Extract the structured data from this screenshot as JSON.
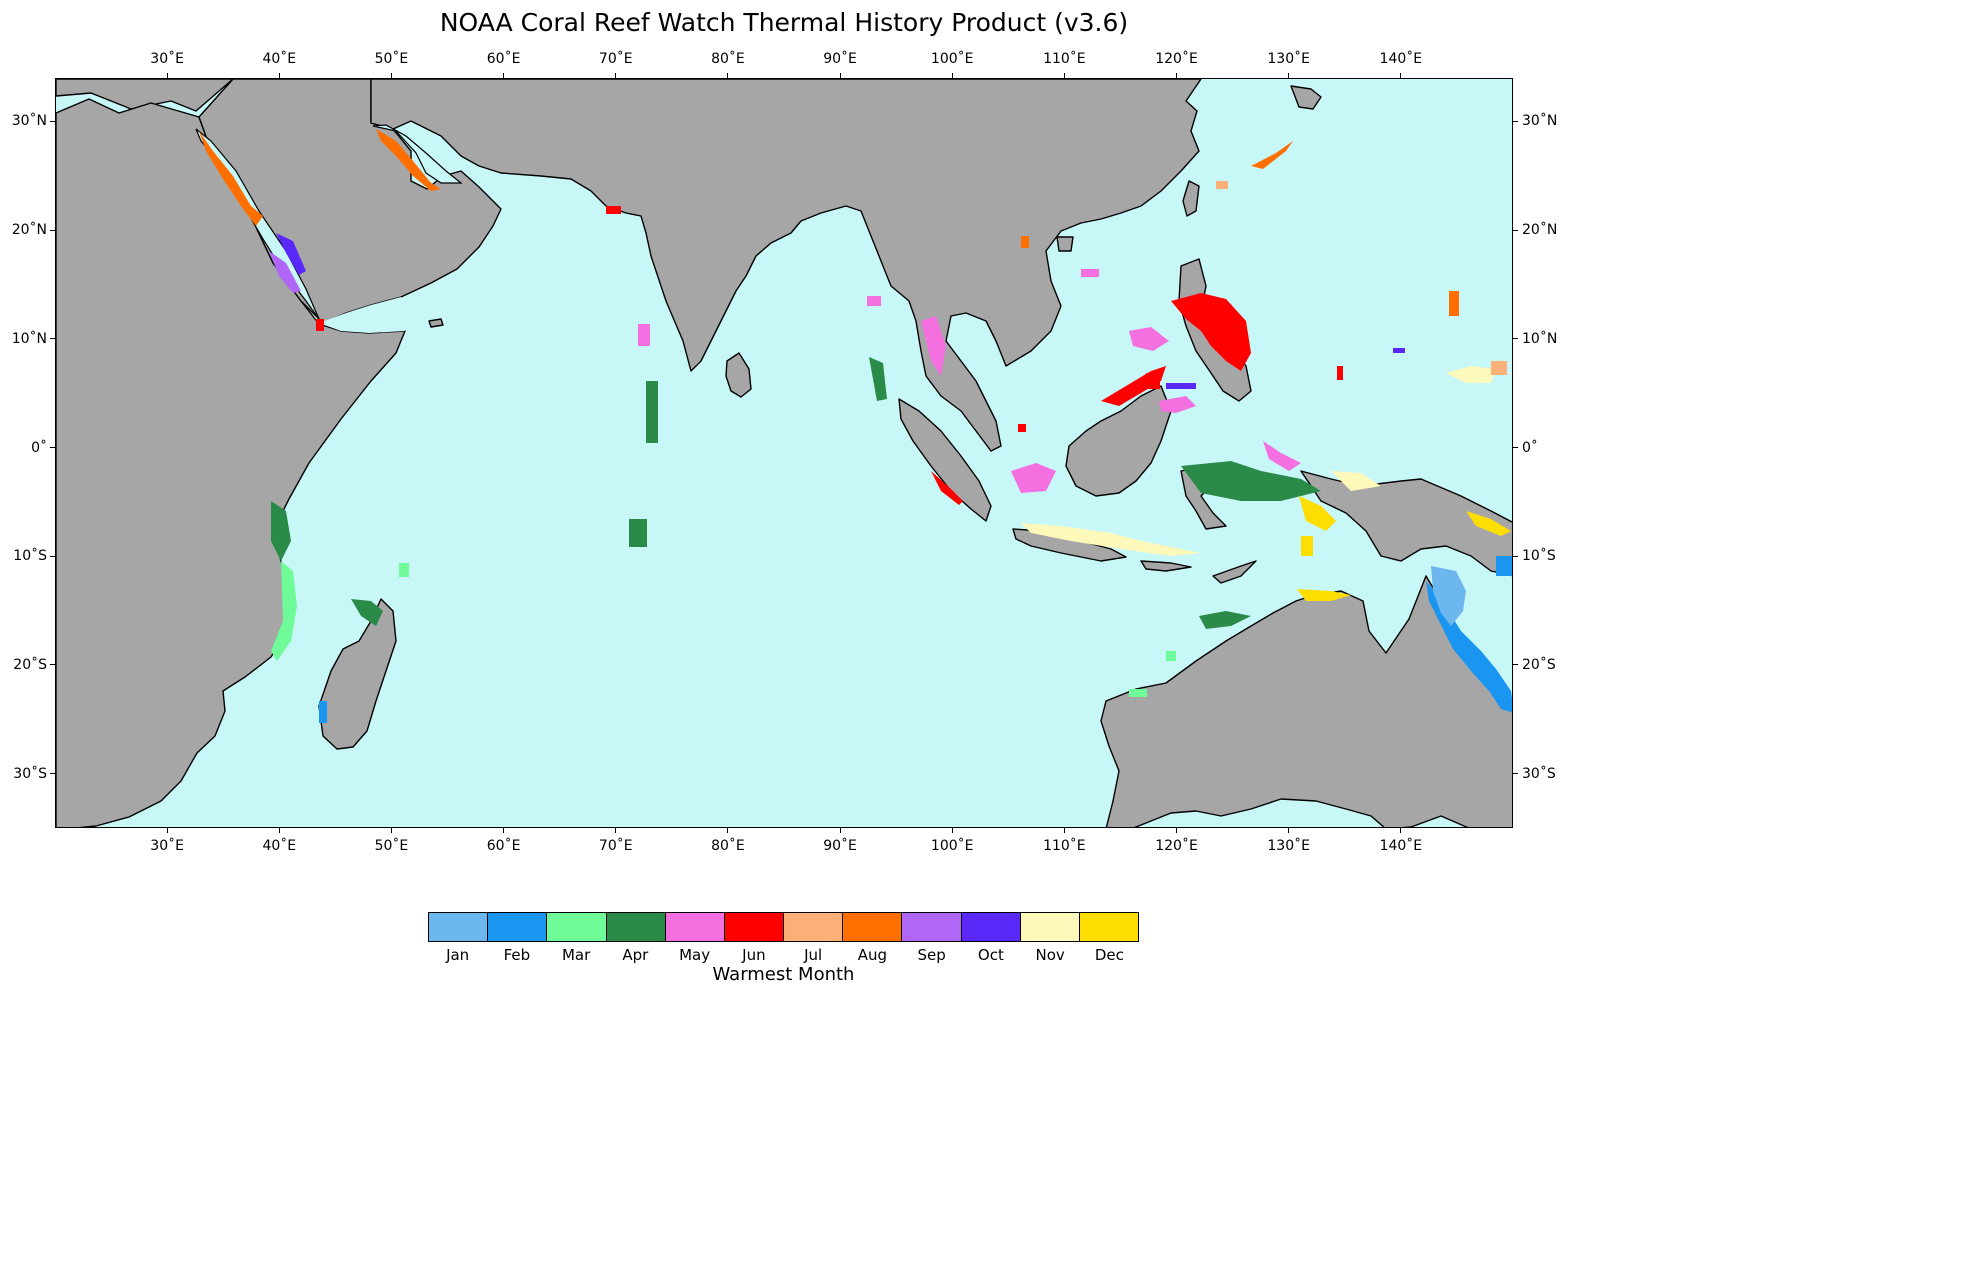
{
  "title": "NOAA Coral Reef Watch Thermal History Product (v3.6)",
  "map": {
    "lon_range": [
      20,
      150
    ],
    "lat_range": [
      -35,
      34
    ],
    "ocean_color": "#c8f7f7",
    "land_color": "#a6a6a6",
    "coastline_color": "#000000",
    "lon_ticks": [
      {
        "value": 30,
        "label": "30˚E"
      },
      {
        "value": 40,
        "label": "40˚E"
      },
      {
        "value": 50,
        "label": "50˚E"
      },
      {
        "value": 60,
        "label": "60˚E"
      },
      {
        "value": 70,
        "label": "70˚E"
      },
      {
        "value": 80,
        "label": "80˚E"
      },
      {
        "value": 90,
        "label": "90˚E"
      },
      {
        "value": 100,
        "label": "100˚E"
      },
      {
        "value": 110,
        "label": "110˚E"
      },
      {
        "value": 120,
        "label": "120˚E"
      },
      {
        "value": 130,
        "label": "130˚E"
      },
      {
        "value": 140,
        "label": "140˚E"
      }
    ],
    "lat_ticks": [
      {
        "value": 30,
        "label": "30˚N"
      },
      {
        "value": 20,
        "label": "20˚N"
      },
      {
        "value": 10,
        "label": "10˚N"
      },
      {
        "value": 0,
        "label": "0˚"
      },
      {
        "value": -10,
        "label": "10˚S"
      },
      {
        "value": -20,
        "label": "20˚S"
      },
      {
        "value": -30,
        "label": "30˚S"
      }
    ]
  },
  "colorbar": {
    "title": "Warmest Month",
    "months": [
      {
        "label": "Jan",
        "color": "#6cb7ee"
      },
      {
        "label": "Feb",
        "color": "#1a96f0"
      },
      {
        "label": "Mar",
        "color": "#6ffc98"
      },
      {
        "label": "Apr",
        "color": "#2a8a48"
      },
      {
        "label": "May",
        "color": "#f46fe0"
      },
      {
        "label": "Jun",
        "color": "#ff0000"
      },
      {
        "label": "Jul",
        "color": "#fdaf78"
      },
      {
        "label": "Aug",
        "color": "#ff6f00"
      },
      {
        "label": "Sep",
        "color": "#b066f6"
      },
      {
        "label": "Oct",
        "color": "#5a28f8"
      },
      {
        "label": "Nov",
        "color": "#fef8bb"
      },
      {
        "label": "Dec",
        "color": "#fede00"
      }
    ]
  }
}
